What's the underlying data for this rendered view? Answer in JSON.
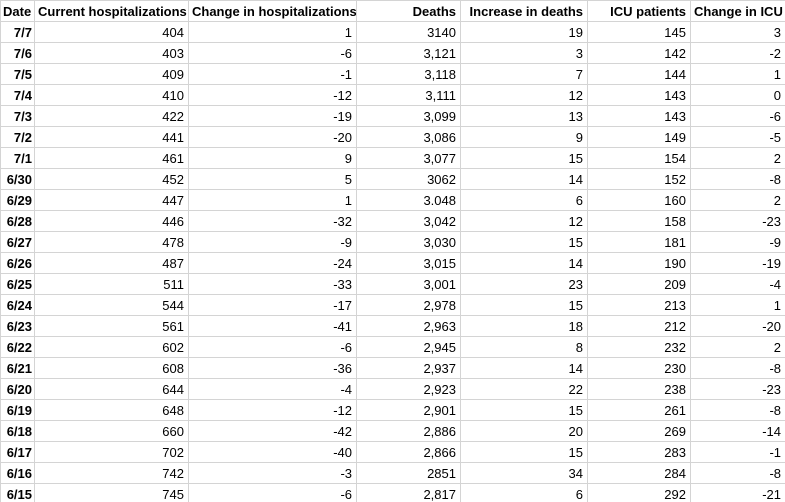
{
  "table": {
    "columns": [
      "Date",
      "Current hospitalizations",
      "Change in hospitalizations",
      "Deaths",
      "Increase in deaths",
      "ICU patients",
      "Change in ICU"
    ],
    "rows": [
      [
        "7/7",
        "404",
        "1",
        "3140",
        "19",
        "145",
        "3"
      ],
      [
        "7/6",
        "403",
        "-6",
        "3,121",
        "3",
        "142",
        "-2"
      ],
      [
        "7/5",
        "409",
        "-1",
        "3,118",
        "7",
        "144",
        "1"
      ],
      [
        "7/4",
        "410",
        "-12",
        "3,111",
        "12",
        "143",
        "0"
      ],
      [
        "7/3",
        "422",
        "-19",
        "3,099",
        "13",
        "143",
        "-6"
      ],
      [
        "7/2",
        "441",
        "-20",
        "3,086",
        "9",
        "149",
        "-5"
      ],
      [
        "7/1",
        "461",
        "9",
        "3,077",
        "15",
        "154",
        "2"
      ],
      [
        "6/30",
        "452",
        "5",
        "3062",
        "14",
        "152",
        "-8"
      ],
      [
        "6/29",
        "447",
        "1",
        "3.048",
        "6",
        "160",
        "2"
      ],
      [
        "6/28",
        "446",
        "-32",
        "3,042",
        "12",
        "158",
        "-23"
      ],
      [
        "6/27",
        "478",
        "-9",
        "3,030",
        "15",
        "181",
        "-9"
      ],
      [
        "6/26",
        "487",
        "-24",
        "3,015",
        "14",
        "190",
        "-19"
      ],
      [
        "6/25",
        "511",
        "-33",
        "3,001",
        "23",
        "209",
        "-4"
      ],
      [
        "6/24",
        "544",
        "-17",
        "2,978",
        "15",
        "213",
        "1"
      ],
      [
        "6/23",
        "561",
        "-41",
        "2,963",
        "18",
        "212",
        "-20"
      ],
      [
        "6/22",
        "602",
        "-6",
        "2,945",
        "8",
        "232",
        "2"
      ],
      [
        "6/21",
        "608",
        "-36",
        "2,937",
        "14",
        "230",
        "-8"
      ],
      [
        "6/20",
        "644",
        "-4",
        "2,923",
        "22",
        "238",
        "-23"
      ],
      [
        "6/19",
        "648",
        "-12",
        "2,901",
        "15",
        "261",
        "-8"
      ],
      [
        "6/18",
        "660",
        "-42",
        "2,886",
        "20",
        "269",
        "-14"
      ],
      [
        "6/17",
        "702",
        "-40",
        "2,866",
        "15",
        "283",
        "-1"
      ],
      [
        "6/16",
        "742",
        "-3",
        "2851",
        "34",
        "284",
        "-8"
      ],
      [
        "6/15",
        "745",
        "-6",
        "2,817",
        "6",
        "292",
        "-21"
      ]
    ]
  },
  "colors": {
    "gridline": "#d4d4d4",
    "cell_background": "#ffffff",
    "text": "#000000"
  }
}
